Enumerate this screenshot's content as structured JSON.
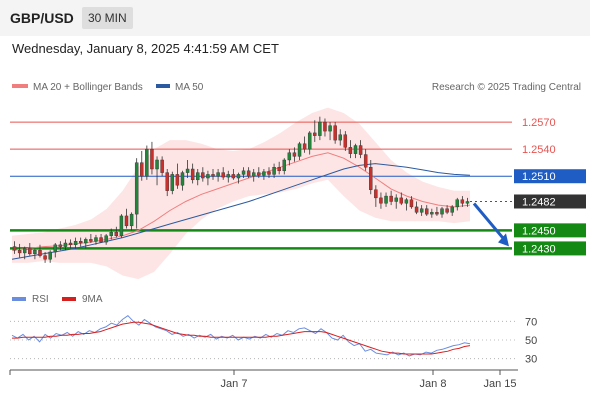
{
  "header": {
    "symbol": "GBP/USD",
    "timeframe": "30 MIN"
  },
  "datetime": "Wednesday, January 8, 2025 4:41:59 AM CET",
  "legend": {
    "ma20_label": "MA 20 + Bollinger Bands",
    "ma50_label": "MA 50",
    "credit": "Research © 2025 Trading Central",
    "rsi_label": "RSI",
    "ma9_label": "9MA"
  },
  "colors": {
    "ma20": "#f07e7e",
    "ma50": "#2c5aa0",
    "bollinger_fill": "#fde0e0",
    "resistance": "#e8534f",
    "pivot": "#1f5cc4",
    "support": "#148a14",
    "rsi": "#6b8de0",
    "rsi_ma9": "#d62020",
    "projection_arrow": "#1f5cc4"
  },
  "chart_data": {
    "type": "candlestick",
    "price_levels": [
      {
        "value": 1.257,
        "label": "1.2570",
        "kind": "resistance"
      },
      {
        "value": 1.254,
        "label": "1.2540",
        "kind": "resistance"
      },
      {
        "value": 1.251,
        "label": "1.2510",
        "kind": "pivot"
      },
      {
        "value": 1.2482,
        "label": "1.2482",
        "kind": "last"
      },
      {
        "value": 1.245,
        "label": "1.2450",
        "kind": "support"
      },
      {
        "value": 1.243,
        "label": "1.2430",
        "kind": "support"
      }
    ],
    "price_ylim": [
      1.2395,
      1.26
    ],
    "candles": [
      [
        1.2432,
        1.2438,
        1.2424,
        1.2428
      ],
      [
        1.2428,
        1.2435,
        1.242,
        1.2425
      ],
      [
        1.2425,
        1.2432,
        1.2418,
        1.243
      ],
      [
        1.243,
        1.2436,
        1.2422,
        1.2424
      ],
      [
        1.2424,
        1.243,
        1.2418,
        1.2428
      ],
      [
        1.2428,
        1.2434,
        1.242,
        1.2422
      ],
      [
        1.2422,
        1.2426,
        1.2414,
        1.2418
      ],
      [
        1.2418,
        1.2428,
        1.2414,
        1.2426
      ],
      [
        1.2426,
        1.2436,
        1.242,
        1.2434
      ],
      [
        1.2434,
        1.2438,
        1.2428,
        1.2432
      ],
      [
        1.2432,
        1.244,
        1.2428,
        1.2436
      ],
      [
        1.2436,
        1.244,
        1.243,
        1.2434
      ],
      [
        1.2434,
        1.2442,
        1.243,
        1.2438
      ],
      [
        1.2438,
        1.2442,
        1.2432,
        1.2436
      ],
      [
        1.2436,
        1.2442,
        1.243,
        1.244
      ],
      [
        1.244,
        1.2446,
        1.2436,
        1.2438
      ],
      [
        1.2438,
        1.2445,
        1.2434,
        1.2442
      ],
      [
        1.2442,
        1.2446,
        1.2436,
        1.2437
      ],
      [
        1.2437,
        1.2446,
        1.2434,
        1.2444
      ],
      [
        1.2444,
        1.2452,
        1.244,
        1.2448
      ],
      [
        1.2448,
        1.2454,
        1.2442,
        1.2444
      ],
      [
        1.2444,
        1.2468,
        1.2442,
        1.2466
      ],
      [
        1.2466,
        1.2474,
        1.2452,
        1.2455
      ],
      [
        1.2455,
        1.247,
        1.245,
        1.2468
      ],
      [
        1.2468,
        1.253,
        1.2452,
        1.2525
      ],
      [
        1.2525,
        1.2538,
        1.2505,
        1.251
      ],
      [
        1.251,
        1.2544,
        1.2506,
        1.254
      ],
      [
        1.254,
        1.2548,
        1.2512,
        1.2518
      ],
      [
        1.2518,
        1.2532,
        1.25,
        1.2528
      ],
      [
        1.2528,
        1.2532,
        1.251,
        1.2514
      ],
      [
        1.2514,
        1.2518,
        1.2488,
        1.2494
      ],
      [
        1.2494,
        1.2515,
        1.249,
        1.2512
      ],
      [
        1.2512,
        1.2524,
        1.2496,
        1.25
      ],
      [
        1.25,
        1.2516,
        1.2494,
        1.2514
      ],
      [
        1.2514,
        1.2528,
        1.2508,
        1.2518
      ],
      [
        1.2518,
        1.2524,
        1.2502,
        1.2506
      ],
      [
        1.2506,
        1.2518,
        1.25,
        1.2514
      ],
      [
        1.2514,
        1.252,
        1.2504,
        1.2508
      ],
      [
        1.2508,
        1.2516,
        1.25,
        1.2512
      ],
      [
        1.2512,
        1.2518,
        1.2506,
        1.251
      ],
      [
        1.251,
        1.2518,
        1.2504,
        1.2514
      ],
      [
        1.2514,
        1.252,
        1.2506,
        1.2509
      ],
      [
        1.2509,
        1.2516,
        1.2503,
        1.2512
      ],
      [
        1.2512,
        1.2518,
        1.2506,
        1.2508
      ],
      [
        1.2508,
        1.2514,
        1.2502,
        1.2512
      ],
      [
        1.2512,
        1.252,
        1.2508,
        1.2516
      ],
      [
        1.2516,
        1.252,
        1.2508,
        1.251
      ],
      [
        1.251,
        1.2518,
        1.2504,
        1.2514
      ],
      [
        1.2514,
        1.252,
        1.2508,
        1.2511
      ],
      [
        1.2511,
        1.2518,
        1.2506,
        1.2515
      ],
      [
        1.2515,
        1.252,
        1.2508,
        1.2512
      ],
      [
        1.2512,
        1.2524,
        1.2508,
        1.252
      ],
      [
        1.252,
        1.2526,
        1.2512,
        1.2516
      ],
      [
        1.2516,
        1.253,
        1.2512,
        1.2528
      ],
      [
        1.2528,
        1.254,
        1.2522,
        1.2536
      ],
      [
        1.2536,
        1.2542,
        1.2526,
        1.2532
      ],
      [
        1.2532,
        1.2548,
        1.2528,
        1.2546
      ],
      [
        1.2546,
        1.2554,
        1.2536,
        1.254
      ],
      [
        1.254,
        1.256,
        1.2534,
        1.2558
      ],
      [
        1.2558,
        1.2572,
        1.2548,
        1.2555
      ],
      [
        1.2555,
        1.2576,
        1.255,
        1.257
      ],
      [
        1.257,
        1.2574,
        1.2554,
        1.256
      ],
      [
        1.256,
        1.257,
        1.255,
        1.2566
      ],
      [
        1.2566,
        1.257,
        1.2546,
        1.255
      ],
      [
        1.255,
        1.2562,
        1.2544,
        1.2556
      ],
      [
        1.2556,
        1.256,
        1.2538,
        1.2542
      ],
      [
        1.2542,
        1.255,
        1.253,
        1.2535
      ],
      [
        1.2535,
        1.2546,
        1.253,
        1.2544
      ],
      [
        1.2544,
        1.255,
        1.253,
        1.2534
      ],
      [
        1.2534,
        1.254,
        1.2516,
        1.252
      ],
      [
        1.252,
        1.2528,
        1.249,
        1.2495
      ],
      [
        1.2495,
        1.25,
        1.2476,
        1.2486
      ],
      [
        1.2486,
        1.2492,
        1.2474,
        1.248
      ],
      [
        1.248,
        1.2492,
        1.2476,
        1.2488
      ],
      [
        1.2488,
        1.2494,
        1.2478,
        1.2482
      ],
      [
        1.2482,
        1.249,
        1.2474,
        1.2486
      ],
      [
        1.2486,
        1.2492,
        1.2478,
        1.248
      ],
      [
        1.248,
        1.2486,
        1.2472,
        1.2484
      ],
      [
        1.2484,
        1.2488,
        1.2474,
        1.2476
      ],
      [
        1.2476,
        1.2482,
        1.2468,
        1.247
      ],
      [
        1.247,
        1.2478,
        1.2466,
        1.2474
      ],
      [
        1.2474,
        1.2478,
        1.2466,
        1.2468
      ],
      [
        1.2468,
        1.2474,
        1.2464,
        1.247
      ],
      [
        1.247,
        1.2476,
        1.2466,
        1.2468
      ],
      [
        1.2468,
        1.2476,
        1.2464,
        1.2474
      ],
      [
        1.2474,
        1.2478,
        1.2468,
        1.247
      ],
      [
        1.247,
        1.2478,
        1.2466,
        1.2476
      ],
      [
        1.2476,
        1.2486,
        1.2472,
        1.2484
      ],
      [
        1.2484,
        1.2488,
        1.2476,
        1.248
      ],
      [
        1.248,
        1.2486,
        1.2476,
        1.2482
      ]
    ],
    "ma20": [
      1.2428,
      1.243,
      1.2432,
      1.2433,
      1.2435,
      1.2437,
      1.244,
      1.2444,
      1.245,
      1.246,
      1.2472,
      1.2482,
      1.249,
      1.2496,
      1.2502,
      1.2508,
      1.2514,
      1.252,
      1.2526,
      1.2532,
      1.2536,
      1.253,
      1.252,
      1.2508,
      1.2496,
      1.2488,
      1.2482,
      1.2478,
      1.2476,
      1.2478
    ],
    "ma50": [
      1.2418,
      1.2421,
      1.2424,
      1.2427,
      1.243,
      1.2434,
      1.2438,
      1.2442,
      1.2447,
      1.2452,
      1.2457,
      1.2462,
      1.2467,
      1.2472,
      1.2477,
      1.2482,
      1.2488,
      1.2494,
      1.25,
      1.2506,
      1.2512,
      1.2518,
      1.2522,
      1.2524,
      1.2522,
      1.252,
      1.2517,
      1.2514,
      1.2512,
      1.2511
    ],
    "bb_upper": [
      1.2444,
      1.2446,
      1.2448,
      1.2452,
      1.2456,
      1.2462,
      1.2474,
      1.2494,
      1.252,
      1.254,
      1.255,
      1.255,
      1.2546,
      1.254,
      1.2538,
      1.254,
      1.2548,
      1.2558,
      1.257,
      1.258,
      1.2586,
      1.258,
      1.2568,
      1.2548,
      1.2528,
      1.2514,
      1.2504,
      1.2498,
      1.2494,
      1.2494
    ],
    "bb_lower": [
      1.2414,
      1.2414,
      1.2416,
      1.2414,
      1.2414,
      1.2414,
      1.241,
      1.24,
      1.2396,
      1.2404,
      1.2424,
      1.2446,
      1.2462,
      1.2474,
      1.2482,
      1.2488,
      1.249,
      1.2492,
      1.2496,
      1.2502,
      1.2506,
      1.2488,
      1.2472,
      1.2464,
      1.246,
      1.246,
      1.246,
      1.246,
      1.2458,
      1.246
    ],
    "rsi": {
      "levels": [
        70,
        50,
        30
      ],
      "ylim": [
        20,
        80
      ],
      "rsi_values": [
        55,
        52,
        56,
        50,
        54,
        48,
        56,
        52,
        57,
        55,
        58,
        54,
        59,
        56,
        60,
        58,
        62,
        64,
        68,
        66,
        72,
        76,
        70,
        66,
        72,
        68,
        64,
        62,
        60,
        56,
        58,
        54,
        56,
        52,
        55,
        53,
        56,
        51,
        54,
        52,
        55,
        50,
        53,
        51,
        54,
        52,
        56,
        53,
        57,
        55,
        60,
        58,
        62,
        63,
        60,
        57,
        62,
        58,
        52,
        50,
        55,
        48,
        44,
        46,
        38,
        40,
        36,
        35,
        34,
        37,
        34,
        36,
        33,
        35,
        34,
        37,
        36,
        39,
        40,
        42,
        44,
        45,
        47,
        46
      ],
      "ma9_values": [
        52,
        52,
        53,
        53,
        53,
        53,
        53,
        54,
        54,
        55,
        55,
        56,
        56,
        57,
        57,
        58,
        59,
        61,
        63,
        65,
        67,
        68,
        69,
        69,
        68,
        67,
        65,
        63,
        61,
        59,
        57,
        56,
        55,
        55,
        54,
        54,
        53,
        53,
        53,
        53,
        53,
        53,
        53,
        53,
        53,
        53,
        53,
        54,
        54,
        55,
        56,
        57,
        58,
        59,
        59,
        59,
        59,
        58,
        56,
        54,
        52,
        50,
        48,
        46,
        44,
        42,
        40,
        38,
        37,
        36,
        36,
        35,
        35,
        35,
        35,
        35,
        35,
        36,
        37,
        38,
        40,
        41,
        43,
        44
      ]
    },
    "x_axis": {
      "tick_labels": [
        "Jan 7",
        "Jan 8",
        "Jan 15"
      ]
    },
    "projection": {
      "from": 1.2482,
      "to": 1.243,
      "direction": "down"
    }
  }
}
